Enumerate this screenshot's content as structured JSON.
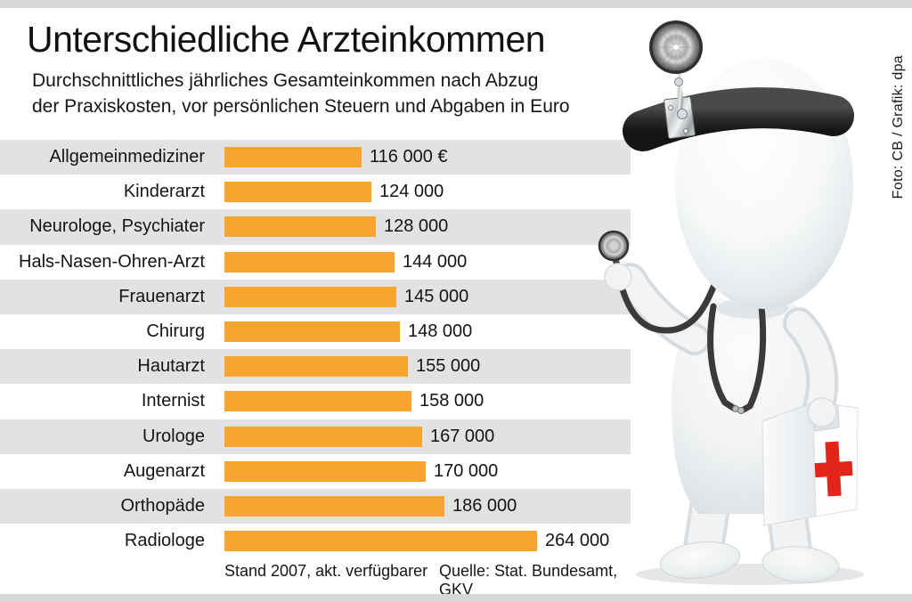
{
  "header": {
    "title": "Unterschiedliche Arzteinkommen",
    "subtitle_line1": "Durchschnittliches jährliches Gesamteinkommen nach Abzug",
    "subtitle_line2": "der Praxiskosten, vor persönlichen Steuern und Abgaben in Euro"
  },
  "chart_data": {
    "type": "bar",
    "orientation": "horizontal",
    "title": "Unterschiedliche Arzteinkommen",
    "unit": "Euro pro Jahr",
    "categories": [
      "Allgemeinmediziner",
      "Kinderarzt",
      "Neurologe, Psychiater",
      "Hals-Nasen-Ohren-Arzt",
      "Frauenarzt",
      "Chirurg",
      "Hautarzt",
      "Internist",
      "Urologe",
      "Augenarzt",
      "Orthopäde",
      "Radiologe"
    ],
    "values": [
      116000,
      124000,
      128000,
      144000,
      145000,
      148000,
      155000,
      158000,
      167000,
      170000,
      186000,
      264000
    ],
    "value_labels": [
      "116 000 €",
      "124 000",
      "128 000",
      "144 000",
      "145 000",
      "148 000",
      "155 000",
      "158 000",
      "167 000",
      "170 000",
      "186 000",
      "264 000"
    ],
    "xlabel": "",
    "ylabel": "",
    "xlim": [
      0,
      264000
    ],
    "grid": false,
    "legend": false,
    "bar_color": "#F7A52F",
    "stripe_color": "#E2E2E2"
  },
  "footer": {
    "note": "Stand 2007, akt. verfügbarer",
    "source": "Quelle: Stat. Bundesamt, GKV"
  },
  "credit": "Foto: CB / Grafik: dpa",
  "illustration": {
    "name": "3d-doctor-figure",
    "elements": [
      "head-mirror",
      "headband",
      "stethoscope",
      "first-aid-case",
      "red-cross"
    ],
    "cross_color": "#E2251B"
  }
}
